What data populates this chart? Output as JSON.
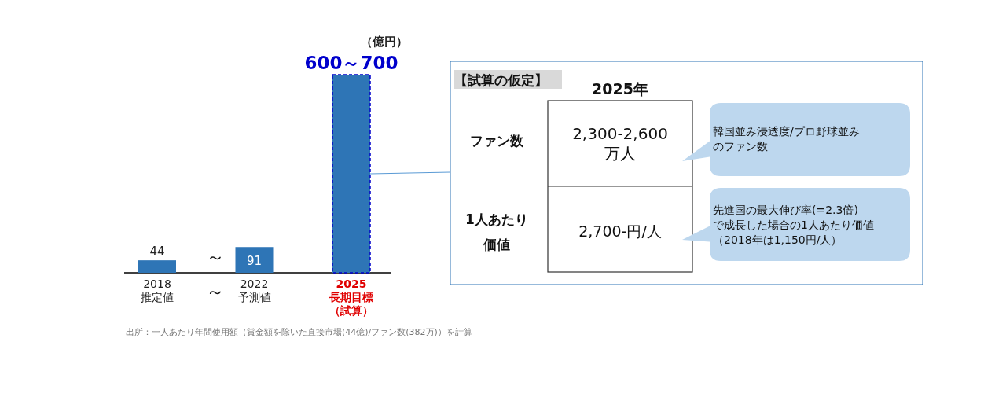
{
  "chart_data": [
    {
      "type": "bar",
      "categories": [
        "2018\n推定値",
        "2022\n予測値",
        "2025\n長期目標（試算）"
      ],
      "values": [
        44,
        91,
        700
      ],
      "value_labels": [
        "44",
        "91",
        "600～700"
      ],
      "color": "#2e75b6",
      "annotations": [
        "（億円）",
        "～",
        "～",
        "出所：一人あたり年間使用額（賞金額を除いた直接市場(44億)/ファン数(382万)）を計算"
      ]
    },
    {
      "type": "other",
      "title": "【試算の仮定】",
      "annotations": [
        "2025年",
        "ファン数",
        "2,300-2,600\n万人",
        "韓国並み浸透度/プロ野球並みのファン数",
        "1人あたり価値",
        "2,700-円/人",
        "先進国の最大伸び率(=2.3倍)\nで成長した場合の1人あたり価値（2018年は1,150円/人）"
      ]
    }
  ]
}
